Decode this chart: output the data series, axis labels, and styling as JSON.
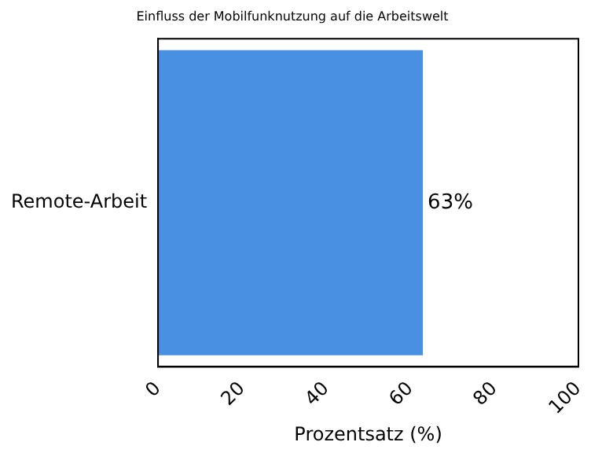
{
  "chart_data": {
    "type": "bar",
    "orientation": "horizontal",
    "title": "Einfluss der Mobilfunknutzung auf die Arbeitswelt",
    "xlabel": "Prozentsatz (%)",
    "categories": [
      "Remote-Arbeit"
    ],
    "values": [
      63
    ],
    "value_labels": [
      "63%"
    ],
    "color": "#4a90e2",
    "xlim": [
      0,
      100
    ],
    "xticks": [
      0,
      20,
      40,
      60,
      80,
      100
    ],
    "grid": false,
    "legend": false
  }
}
